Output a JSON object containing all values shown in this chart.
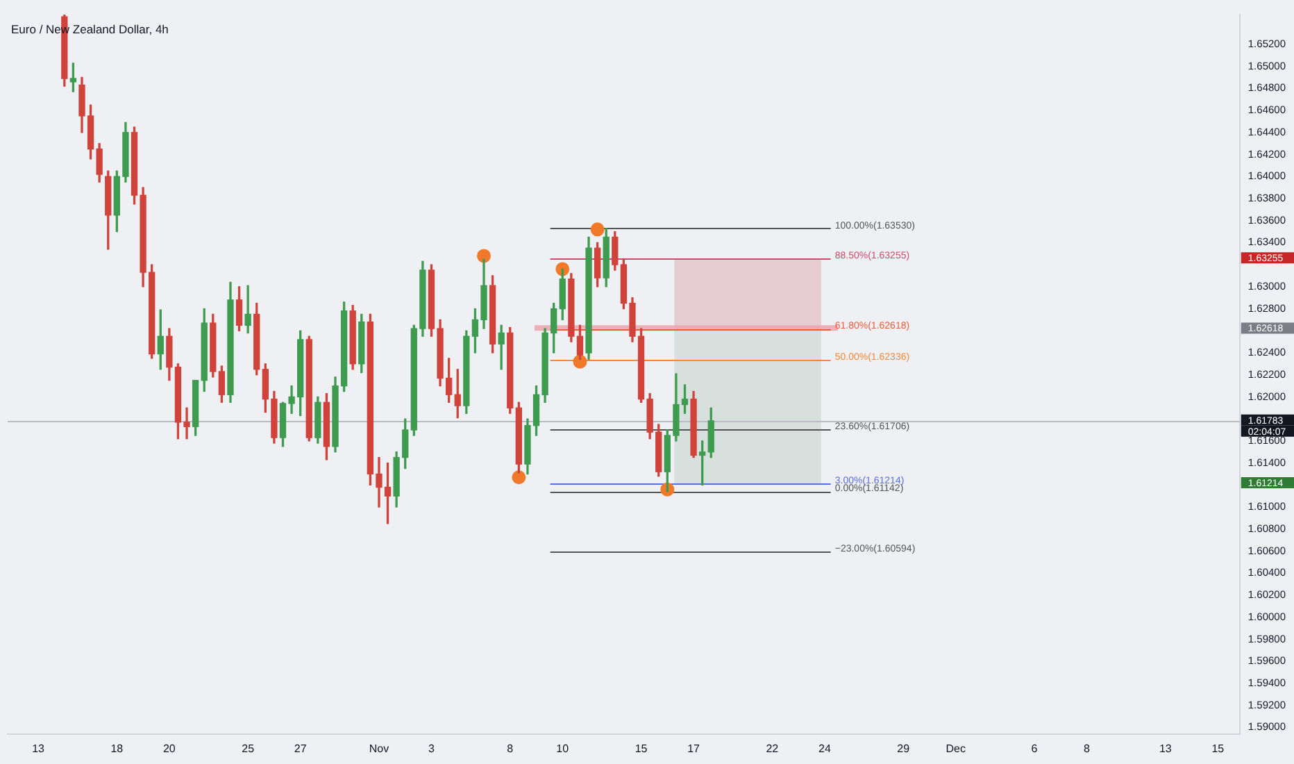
{
  "chart_data": {
    "type": "candlestick",
    "title": "Euro / New Zealand Dollar, 4h",
    "categories": [
      null,
      null,
      null,
      "13",
      null,
      null,
      null,
      null,
      null,
      null,
      null,
      null,
      "18",
      null,
      null,
      null,
      null,
      null,
      "20",
      null,
      null,
      null,
      null,
      null,
      null,
      null,
      null,
      "25",
      null,
      null,
      null,
      null,
      null,
      "27",
      null,
      null,
      null,
      null,
      null,
      null,
      null,
      null,
      "Nov",
      null,
      null,
      null,
      null,
      null,
      "3",
      null,
      null,
      null,
      null,
      null,
      null,
      null,
      null,
      "8",
      null,
      null,
      null,
      null,
      null,
      "10",
      null,
      null,
      null,
      null,
      null,
      null,
      null,
      null,
      "15",
      null,
      null,
      null,
      null,
      null,
      "17",
      null,
      null,
      null,
      null,
      null,
      null,
      null,
      null,
      "22",
      null,
      null,
      null,
      null,
      null,
      "24",
      null,
      null,
      null,
      null,
      null,
      null,
      null,
      null,
      "29",
      null,
      null,
      null,
      null,
      null,
      "Dec",
      null,
      null,
      null,
      null,
      null,
      null,
      null,
      null,
      "6",
      null,
      null,
      null,
      null,
      null,
      "8",
      null,
      null,
      null,
      null,
      null,
      null,
      null,
      null,
      "13",
      null,
      null,
      null,
      null,
      null,
      "15",
      null,
      null
    ],
    "ohlc": [
      null,
      null,
      null,
      null,
      null,
      null,
      [
        1.6545,
        1.6547,
        1.6482,
        1.6489
      ],
      [
        1.6486,
        1.6503,
        1.6477,
        1.6489
      ],
      [
        1.6483,
        1.649,
        1.644,
        1.6455
      ],
      [
        1.6455,
        1.6465,
        1.6416,
        1.6425
      ],
      [
        1.6425,
        1.643,
        1.6395,
        1.6402
      ],
      [
        1.64,
        1.6405,
        1.6334,
        1.6365
      ],
      [
        1.6365,
        1.6405,
        1.635,
        1.64
      ],
      [
        1.64,
        1.6449,
        1.6395,
        1.644
      ],
      [
        1.644,
        1.6445,
        1.6375,
        1.6383
      ],
      [
        1.6383,
        1.639,
        1.63,
        1.6313
      ],
      [
        1.6313,
        1.632,
        1.6235,
        1.6239
      ],
      [
        1.6239,
        1.6279,
        1.6225,
        1.6255
      ],
      [
        1.6255,
        1.6262,
        1.6215,
        1.6227
      ],
      [
        1.6227,
        1.623,
        1.6162,
        1.6177
      ],
      [
        1.6177,
        1.619,
        1.6162,
        1.6173
      ],
      [
        1.6173,
        1.6215,
        1.6165,
        1.6215
      ],
      [
        1.6215,
        1.628,
        1.6205,
        1.6267
      ],
      [
        1.6267,
        1.6275,
        1.6218,
        1.6223
      ],
      [
        1.6223,
        1.6228,
        1.6195,
        1.6202
      ],
      [
        1.6202,
        1.6304,
        1.6195,
        1.6288
      ],
      [
        1.6288,
        1.63,
        1.626,
        1.6265
      ],
      [
        1.6265,
        1.6301,
        1.6258,
        1.6275
      ],
      [
        1.6275,
        1.6285,
        1.622,
        1.6225
      ],
      [
        1.6225,
        1.623,
        1.6186,
        1.6198
      ],
      [
        1.6198,
        1.6205,
        1.6158,
        1.6163
      ],
      [
        1.6163,
        1.6195,
        1.6155,
        1.6194
      ],
      [
        1.6194,
        1.621,
        1.6185,
        1.62
      ],
      [
        1.62,
        1.626,
        1.6183,
        1.6252
      ],
      [
        1.6252,
        1.6255,
        1.616,
        1.6163
      ],
      [
        1.6163,
        1.62,
        1.6158,
        1.6195
      ],
      [
        1.6195,
        1.6203,
        1.6143,
        1.6155
      ],
      [
        1.6155,
        1.6218,
        1.615,
        1.621
      ],
      [
        1.621,
        1.6286,
        1.6205,
        1.6278
      ],
      [
        1.6278,
        1.6283,
        1.6225,
        1.623
      ],
      [
        1.623,
        1.6275,
        1.6222,
        1.6268
      ],
      [
        1.6268,
        1.6275,
        1.612,
        1.613
      ],
      [
        1.613,
        1.6145,
        1.61,
        1.6118
      ],
      [
        1.6118,
        1.614,
        1.6085,
        1.611
      ],
      [
        1.611,
        1.615,
        1.61,
        1.6145
      ],
      [
        1.6145,
        1.618,
        1.6135,
        1.617
      ],
      [
        1.617,
        1.6265,
        1.6165,
        1.6262
      ],
      [
        1.6262,
        1.6323,
        1.6255,
        1.6315
      ],
      [
        1.6315,
        1.632,
        1.6255,
        1.6262
      ],
      [
        1.6262,
        1.627,
        1.621,
        1.6217
      ],
      [
        1.6217,
        1.6235,
        1.6195,
        1.6202
      ],
      [
        1.6202,
        1.6225,
        1.6181,
        1.6192
      ],
      [
        1.6192,
        1.626,
        1.6185,
        1.6255
      ],
      [
        1.6255,
        1.628,
        1.624,
        1.627
      ],
      [
        1.627,
        1.6325,
        1.6262,
        1.6301
      ],
      [
        1.6301,
        1.631,
        1.624,
        1.6248
      ],
      [
        1.6248,
        1.6265,
        1.6225,
        1.6258
      ],
      [
        1.6258,
        1.6263,
        1.6185,
        1.619
      ],
      [
        1.619,
        1.6195,
        1.6131,
        1.6139
      ],
      [
        1.6139,
        1.618,
        1.613,
        1.6174
      ],
      [
        1.6174,
        1.621,
        1.6165,
        1.6202
      ],
      [
        1.6202,
        1.6262,
        1.6195,
        1.6258
      ],
      [
        1.6258,
        1.6285,
        1.624,
        1.628
      ],
      [
        1.628,
        1.6316,
        1.627,
        1.6307
      ],
      [
        1.6307,
        1.6312,
        1.625,
        1.6255
      ],
      [
        1.6255,
        1.6265,
        1.6234,
        1.6238
      ],
      [
        1.624,
        1.6345,
        1.6234,
        1.6335
      ],
      [
        1.6335,
        1.634,
        1.63,
        1.6308
      ],
      [
        1.6308,
        1.6353,
        1.63,
        1.6345
      ],
      [
        1.6345,
        1.635,
        1.6315,
        1.632
      ],
      [
        1.632,
        1.6325,
        1.628,
        1.6285
      ],
      [
        1.6285,
        1.629,
        1.625,
        1.6255
      ],
      [
        1.6255,
        1.6262,
        1.6195,
        1.6198
      ],
      [
        1.6198,
        1.6203,
        1.6162,
        1.6168
      ],
      [
        1.6168,
        1.6175,
        1.6128,
        1.6132
      ],
      [
        1.6132,
        1.617,
        1.6114,
        1.6165
      ],
      [
        1.6165,
        1.6221,
        1.616,
        1.6193
      ],
      [
        1.6193,
        1.6211,
        1.6185,
        1.6198
      ],
      [
        1.6198,
        1.6205,
        1.6145,
        1.6147
      ],
      [
        1.6147,
        1.616,
        1.612,
        1.615
      ],
      [
        1.615,
        1.619,
        1.6145,
        1.61783
      ],
      null,
      null,
      null,
      null,
      null,
      null,
      null,
      null,
      null,
      null,
      null,
      null,
      null,
      null,
      null,
      null,
      null,
      null,
      null,
      null,
      null,
      null,
      null,
      null,
      null,
      null,
      null,
      null,
      null,
      null,
      null,
      null,
      null,
      null,
      null,
      null,
      null,
      null,
      null,
      null,
      null,
      null,
      null,
      null,
      null,
      null,
      null,
      null,
      null,
      null,
      null,
      null,
      null,
      null,
      null,
      null,
      null,
      null,
      null,
      null
    ],
    "colors": [
      null,
      null,
      null,
      null,
      null,
      null,
      "#d0433b",
      "#3e9b4f",
      "#d0433b",
      "#d0433b",
      "#d0433b",
      "#d0433b",
      "#3e9b4f",
      "#3e9b4f",
      "#d0433b",
      "#d0433b",
      "#d0433b",
      "#3e9b4f",
      "#d0433b",
      "#d0433b",
      "#d0433b",
      "#3e9b4f",
      "#3e9b4f",
      "#d0433b",
      "#d0433b",
      "#3e9b4f",
      "#d0433b",
      "#3e9b4f",
      "#d0433b",
      "#d0433b",
      "#d0433b",
      "#3e9b4f",
      "#3e9b4f",
      "#3e9b4f",
      "#d0433b",
      "#3e9b4f",
      "#d0433b",
      "#3e9b4f",
      "#3e9b4f",
      "#d0433b",
      "#3e9b4f",
      "#d0433b",
      "#d0433b",
      "#d0433b",
      "#3e9b4f",
      "#3e9b4f",
      "#3e9b4f",
      "#3e9b4f",
      "#d0433b",
      "#d0433b",
      "#d0433b",
      "#d0433b",
      "#3e9b4f",
      "#3e9b4f",
      "#3e9b4f",
      "#d0433b",
      "#3e9b4f",
      "#d0433b",
      "#d0433b",
      "#3e9b4f",
      "#3e9b4f",
      "#3e9b4f",
      "#3e9b4f",
      "#3e9b4f",
      "#d0433b",
      "#d0433b",
      "#3e9b4f",
      "#d0433b",
      "#3e9b4f",
      "#d0433b",
      "#d0433b",
      "#d0433b",
      "#d0433b",
      "#d0433b",
      "#d0433b",
      "#3e9b4f",
      "#3e9b4f",
      "#3e9b4f",
      "#d0433b",
      "#3e9b4f",
      "#3e9b4f",
      null,
      null,
      null,
      null,
      null,
      null,
      null,
      null,
      null,
      null,
      null,
      null,
      null,
      null,
      null,
      null,
      null,
      null,
      null,
      null,
      null,
      null,
      null,
      null,
      null,
      null,
      null,
      null,
      null,
      null,
      null,
      null,
      null,
      null,
      null,
      null,
      null,
      null,
      null,
      null,
      null,
      null,
      null,
      null,
      null,
      null,
      null,
      null,
      null,
      null,
      null,
      null,
      null,
      null,
      null,
      null,
      null,
      null,
      null,
      null
    ],
    "series": [
      {
        "type": "scatter",
        "color": "#f07a2a",
        "marker": "circle",
        "values": [
          null,
          null,
          null,
          null,
          null,
          null,
          null,
          null,
          null,
          null,
          null,
          null,
          null,
          null,
          null,
          null,
          null,
          null,
          null,
          null,
          null,
          null,
          null,
          null,
          null,
          null,
          null,
          null,
          null,
          null,
          null,
          null,
          null,
          null,
          null,
          null,
          null,
          null,
          null,
          null,
          null,
          null,
          null,
          null,
          null,
          null,
          null,
          null,
          null,
          null,
          null,
          null,
          null,
          null,
          1.6328,
          null,
          null,
          null,
          1.6127,
          null,
          null,
          null,
          null,
          1.6316,
          null,
          1.6232,
          null,
          1.6352,
          null,
          null,
          null,
          null,
          null,
          null,
          null,
          1.6116,
          null,
          null,
          null,
          null,
          null,
          null,
          null,
          null,
          null,
          null,
          null,
          null,
          null,
          null,
          null,
          null,
          null,
          null,
          null,
          null,
          null,
          null,
          null,
          null,
          null,
          null,
          null,
          null,
          null,
          null,
          null,
          null,
          null,
          null,
          null,
          null,
          null,
          null,
          null,
          null,
          null,
          null,
          null,
          null,
          null,
          null,
          null,
          null,
          null,
          null,
          null,
          null,
          null,
          null,
          null,
          null,
          null,
          null,
          null,
          null,
          null,
          null,
          null,
          null,
          null
        ]
      }
    ],
    "ylim": [
      1.5894,
      1.6547
    ],
    "yticks": [
      {
        "value": 1.59,
        "label": "1.59000"
      },
      {
        "value": 1.592,
        "label": "1.59200"
      },
      {
        "value": 1.594,
        "label": "1.59400"
      },
      {
        "value": 1.596,
        "label": "1.59600"
      },
      {
        "value": 1.598,
        "label": "1.59800"
      },
      {
        "value": 1.6,
        "label": "1.60000"
      },
      {
        "value": 1.602,
        "label": "1.60200"
      },
      {
        "value": 1.604,
        "label": "1.60400"
      },
      {
        "value": 1.606,
        "label": "1.60600"
      },
      {
        "value": 1.608,
        "label": "1.60800"
      },
      {
        "value": 1.61,
        "label": "1.61000"
      },
      {
        "value": 1.614,
        "label": "1.61400"
      },
      {
        "value": 1.616,
        "label": "1.61600"
      },
      {
        "value": 1.62,
        "label": "1.62000"
      },
      {
        "value": 1.622,
        "label": "1.62200"
      },
      {
        "value": 1.624,
        "label": "1.62400"
      },
      {
        "value": 1.628,
        "label": "1.62800"
      },
      {
        "value": 1.63,
        "label": "1.63000"
      },
      {
        "value": 1.634,
        "label": "1.63400"
      },
      {
        "value": 1.636,
        "label": "1.63600"
      },
      {
        "value": 1.638,
        "label": "1.63800"
      },
      {
        "value": 1.64,
        "label": "1.64000"
      },
      {
        "value": 1.642,
        "label": "1.64200"
      },
      {
        "value": 1.644,
        "label": "1.64400"
      },
      {
        "value": 1.646,
        "label": "1.64600"
      },
      {
        "value": 1.648,
        "label": "1.64800"
      },
      {
        "value": 1.65,
        "label": "1.65000"
      },
      {
        "value": 1.652,
        "label": "1.65200"
      }
    ],
    "ref_lines": [
      {
        "axis": "y",
        "value": 1.6353,
        "label": "100.00%(1.63530)",
        "color": "#555555"
      },
      {
        "axis": "y",
        "value": 1.63255,
        "label": "88.50%(1.63255)",
        "color": "#d04a6a"
      },
      {
        "axis": "y",
        "value": 1.62618,
        "label": "61.80%(1.62618)",
        "color": "#e8603c"
      },
      {
        "axis": "y",
        "value": 1.62336,
        "label": "50.00%(1.62336)",
        "color": "#f08a3c"
      },
      {
        "axis": "y",
        "value": 1.61706,
        "label": "23.60%(1.61706)",
        "color": "#555555"
      },
      {
        "axis": "y",
        "value": 1.61214,
        "label": "3.00%(1.61214)",
        "color": "#5b6ee1"
      },
      {
        "axis": "y",
        "value": 1.61142,
        "label": "0.00%(1.61142)",
        "color": "#555555"
      },
      {
        "axis": "y",
        "value": 1.60594,
        "label": "−23.00%(1.60594)",
        "color": "#555555"
      },
      {
        "axis": "y",
        "value": 1.61783,
        "color": "#b8bbc4"
      }
    ],
    "bands": [
      {
        "axis": "y",
        "from": 1.62618,
        "to": 1.63255,
        "color": "#e3c6cd"
      },
      {
        "axis": "y",
        "from": 1.61214,
        "to": 1.62618,
        "color": "#d3ddd8"
      },
      {
        "axis": "y",
        "from": 1.626,
        "to": 1.6265,
        "color": "#eba5ad"
      }
    ],
    "annotations": [
      "1.63255",
      "1.62618",
      "1.61783",
      "02:04:07",
      "1.61214"
    ],
    "legend": false
  }
}
